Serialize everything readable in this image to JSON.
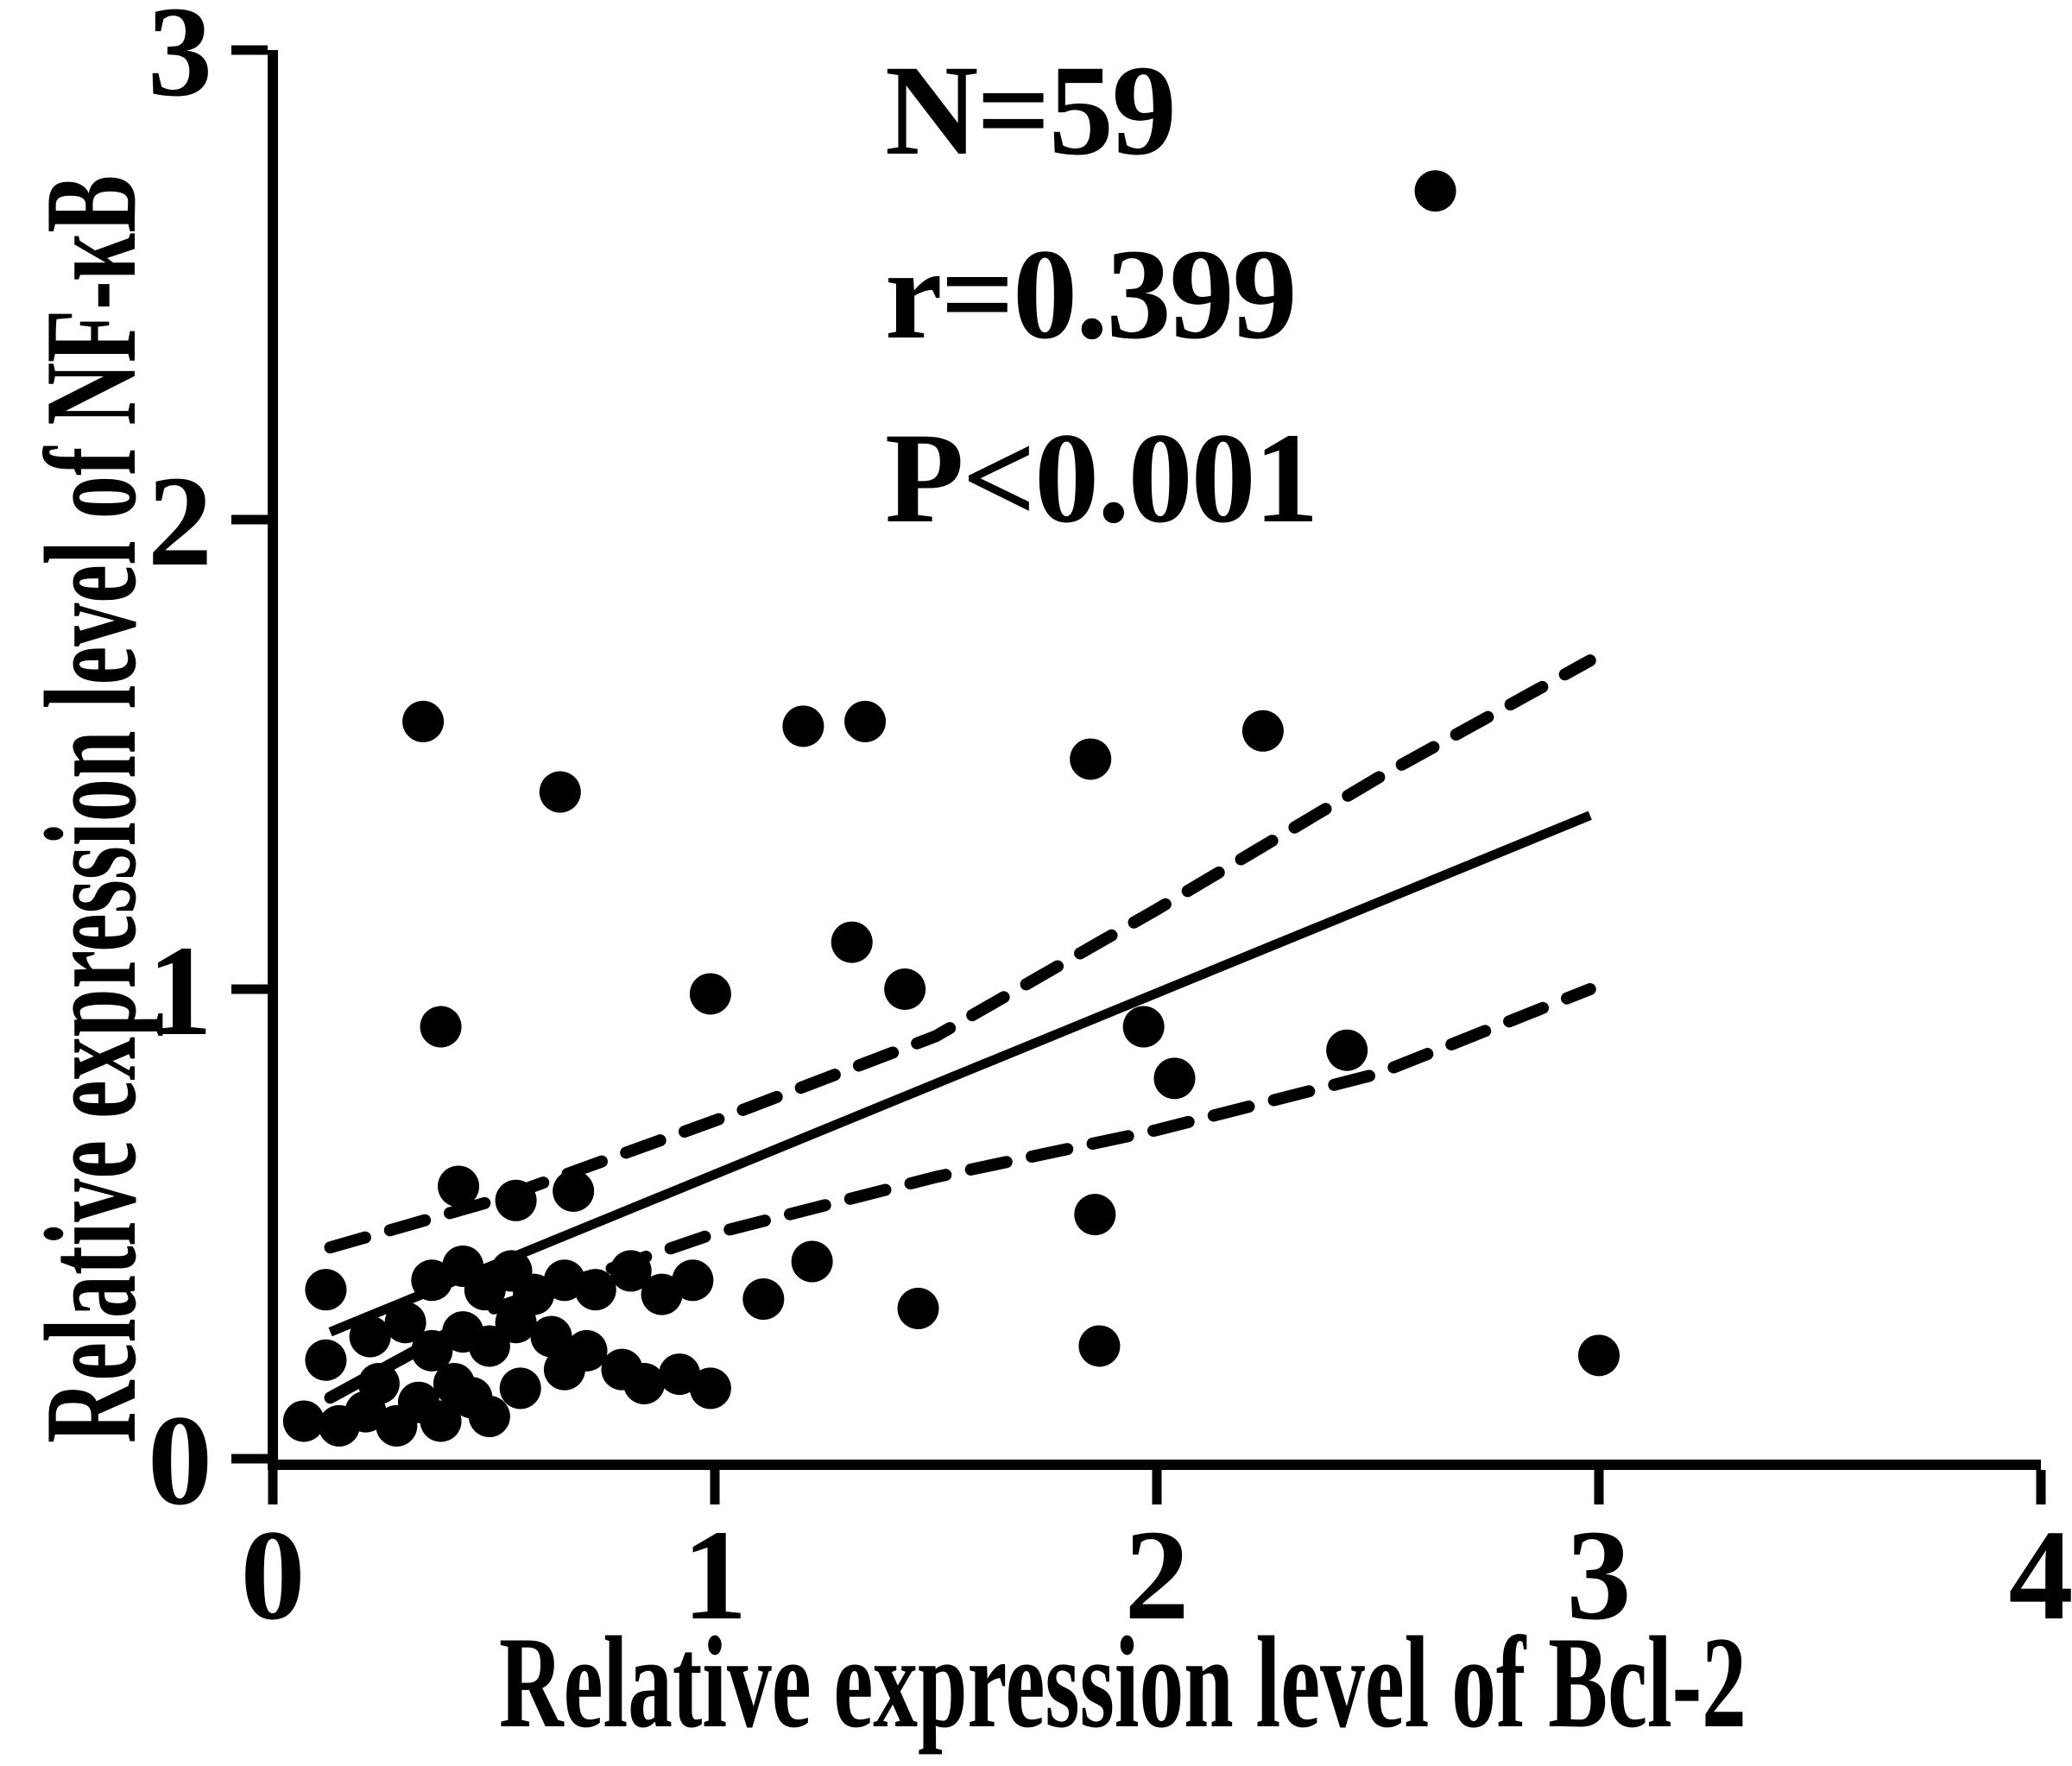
{
  "figure": {
    "background_color": "#ffffff",
    "ink_color": "#000000"
  },
  "annotation": {
    "n_label": "N=59",
    "r_label": "r=0.399",
    "p_label": "P<0.001"
  },
  "chart_data": {
    "type": "scatter",
    "title": "",
    "xlabel": "Relative expression level of Bcl-2",
    "ylabel": "Relative expression level of NF-κB",
    "xlim": [
      0,
      4
    ],
    "ylim": [
      0,
      3
    ],
    "x_ticks": [
      "0",
      "1",
      "2",
      "3",
      "4"
    ],
    "y_ticks": [
      "0",
      "1",
      "2",
      "3"
    ],
    "grid": false,
    "legend": "none",
    "sample_size": 59,
    "correlation_r": 0.399,
    "p_value": "<0.001",
    "marker": {
      "shape": "circle",
      "color": "#000000",
      "radius_px": 24
    },
    "points": [
      [
        0.34,
        1.57
      ],
      [
        0.65,
        1.42
      ],
      [
        1.2,
        1.56
      ],
      [
        1.34,
        1.57
      ],
      [
        1.85,
        1.49
      ],
      [
        2.24,
        1.55
      ],
      [
        2.63,
        2.7
      ],
      [
        1.31,
        1.1
      ],
      [
        1.43,
        1.0
      ],
      [
        0.99,
        0.99
      ],
      [
        0.38,
        0.92
      ],
      [
        1.97,
        0.92
      ],
      [
        2.04,
        0.81
      ],
      [
        2.43,
        0.87
      ],
      [
        1.86,
        0.52
      ],
      [
        1.87,
        0.24
      ],
      [
        1.11,
        0.34
      ],
      [
        1.22,
        0.42
      ],
      [
        1.46,
        0.32
      ],
      [
        3.0,
        0.22
      ],
      [
        0.12,
        0.36
      ],
      [
        0.12,
        0.21
      ],
      [
        0.07,
        0.08
      ],
      [
        0.15,
        0.07
      ],
      [
        0.21,
        0.1
      ],
      [
        0.24,
        0.16
      ],
      [
        0.28,
        0.07
      ],
      [
        0.33,
        0.12
      ],
      [
        0.38,
        0.08
      ],
      [
        0.41,
        0.16
      ],
      [
        0.45,
        0.13
      ],
      [
        0.49,
        0.09
      ],
      [
        0.56,
        0.15
      ],
      [
        0.22,
        0.26
      ],
      [
        0.3,
        0.29
      ],
      [
        0.36,
        0.23
      ],
      [
        0.43,
        0.27
      ],
      [
        0.49,
        0.24
      ],
      [
        0.55,
        0.29
      ],
      [
        0.63,
        0.26
      ],
      [
        0.66,
        0.19
      ],
      [
        0.71,
        0.23
      ],
      [
        0.79,
        0.19
      ],
      [
        0.84,
        0.16
      ],
      [
        0.92,
        0.18
      ],
      [
        0.99,
        0.15
      ],
      [
        0.36,
        0.38
      ],
      [
        0.43,
        0.41
      ],
      [
        0.48,
        0.36
      ],
      [
        0.54,
        0.4
      ],
      [
        0.59,
        0.35
      ],
      [
        0.66,
        0.38
      ],
      [
        0.73,
        0.36
      ],
      [
        0.81,
        0.4
      ],
      [
        0.88,
        0.35
      ],
      [
        0.95,
        0.38
      ],
      [
        0.42,
        0.58
      ],
      [
        0.55,
        0.55
      ],
      [
        0.68,
        0.57
      ]
    ],
    "regression_line": {
      "style": "solid",
      "x": [
        0.13,
        2.98
      ],
      "y": [
        0.27,
        1.37
      ]
    },
    "ci_upper": {
      "style": "dashed",
      "points": [
        [
          0.13,
          0.45
        ],
        [
          0.5,
          0.55
        ],
        [
          1.0,
          0.72
        ],
        [
          1.5,
          0.9
        ],
        [
          2.0,
          1.17
        ],
        [
          2.5,
          1.45
        ],
        [
          2.98,
          1.7
        ]
      ]
    },
    "ci_lower": {
      "style": "dashed",
      "points": [
        [
          0.13,
          0.13
        ],
        [
          0.5,
          0.32
        ],
        [
          1.0,
          0.48
        ],
        [
          1.5,
          0.6
        ],
        [
          2.0,
          0.7
        ],
        [
          2.5,
          0.82
        ],
        [
          2.98,
          1.0
        ]
      ]
    }
  }
}
